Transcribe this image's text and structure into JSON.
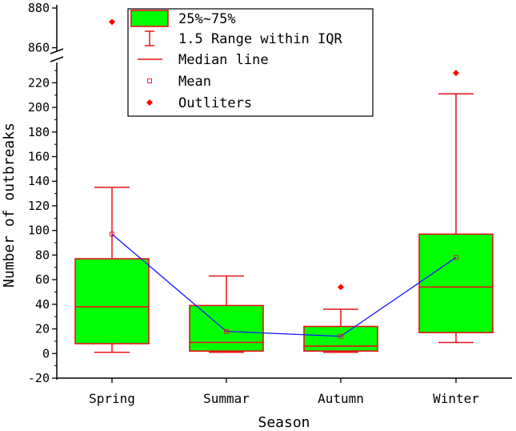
{
  "chart_data": {
    "type": "box",
    "xlabel": "Season",
    "ylabel": "Number of outbreaks",
    "categories": [
      "Spring",
      "Summar",
      "Autumn",
      "Winter"
    ],
    "y_axis": {
      "lower_range": [
        -20,
        230
      ],
      "lower_ticks": [
        -20,
        0,
        20,
        40,
        60,
        80,
        100,
        120,
        140,
        160,
        180,
        200,
        220
      ],
      "break": true,
      "upper_range": [
        855,
        880
      ],
      "upper_ticks": [
        860,
        880
      ]
    },
    "boxes": [
      {
        "category": "Spring",
        "whisker_low": 1,
        "q1": 8,
        "median": 38,
        "q3": 77,
        "whisker_high": 135,
        "mean": 97,
        "outliers": [
          873
        ]
      },
      {
        "category": "Summar",
        "whisker_low": 1,
        "q1": 2,
        "median": 9,
        "q3": 39,
        "whisker_high": 63,
        "mean": 18,
        "outliers": []
      },
      {
        "category": "Autumn",
        "whisker_low": 1,
        "q1": 2,
        "median": 6,
        "q3": 22,
        "whisker_high": 36,
        "mean": 14,
        "outliers": [
          54
        ]
      },
      {
        "category": "Winter",
        "whisker_low": 9,
        "q1": 17,
        "median": 54,
        "q3": 97,
        "whisker_high": 211,
        "mean": 78,
        "outliers": [
          228
        ]
      }
    ],
    "mean_line": true,
    "grid": false,
    "legend_placement": "top-left",
    "legend": [
      {
        "key": "box",
        "label": "25%~75%"
      },
      {
        "key": "whisker",
        "label": "1.5 Range within IQR"
      },
      {
        "key": "median",
        "label": "Median line"
      },
      {
        "key": "mean",
        "label": "Mean"
      },
      {
        "key": "outlier",
        "label": "Outliters"
      }
    ],
    "colors": {
      "box_fill": "#00ff00",
      "box_edge": "#e8121b",
      "mean_line": "#1515ff",
      "outlier": "#ff0000",
      "axis": "#000000"
    }
  }
}
